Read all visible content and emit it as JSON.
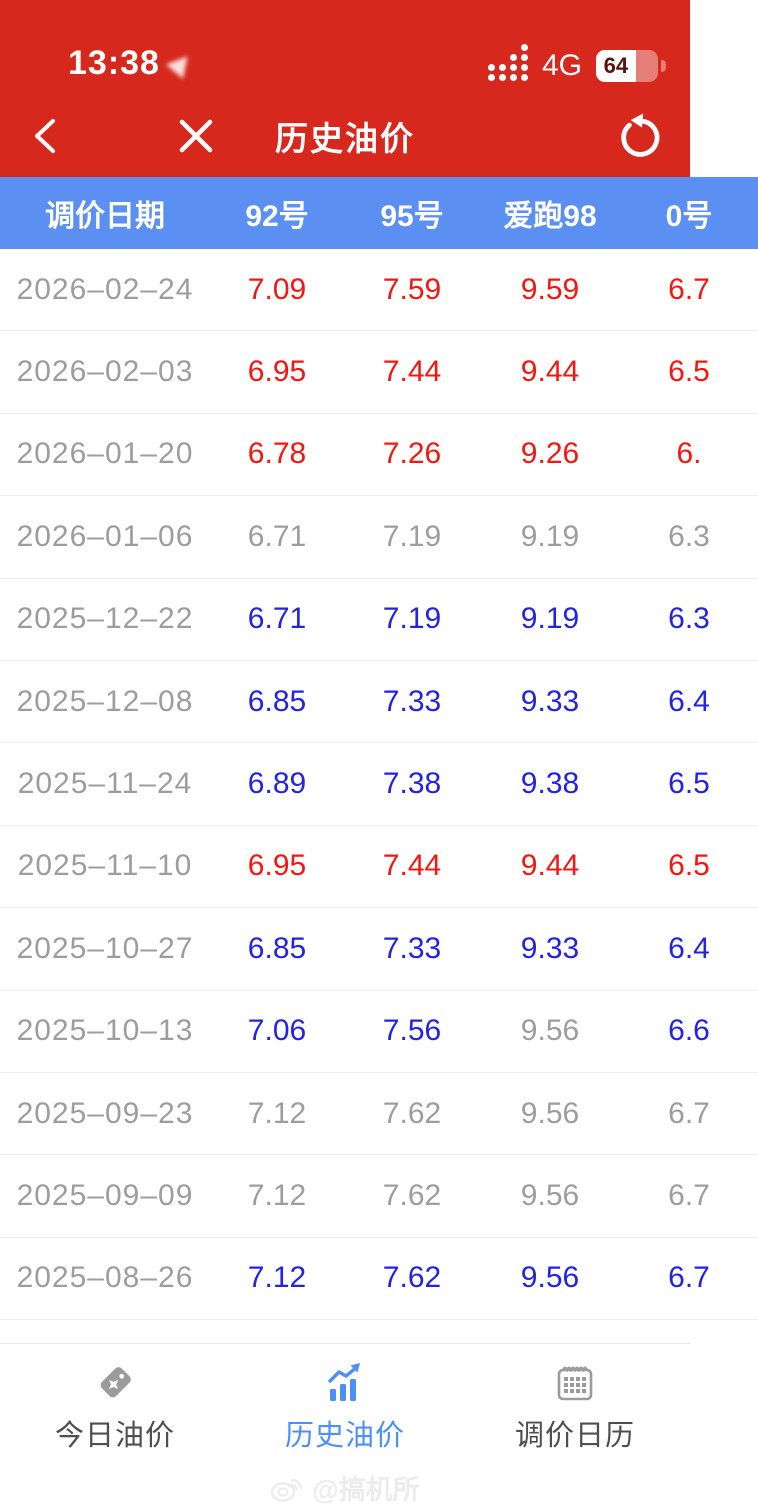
{
  "theme": {
    "red_bg": "#d7281e",
    "header_blue": "#5b8ff2",
    "price_up": "#f7150f",
    "price_down": "#2222e8",
    "price_flat": "#9d9d9d",
    "date_gray": "#9d9d9d",
    "tab_active": "#4d90f5",
    "tab_inactive": "#4f4f4f",
    "icon_gray": "#9b9b9b",
    "divider": "#ededed",
    "watermark": "#ececec"
  },
  "status_bar": {
    "time": "13:38",
    "network": "4G",
    "battery_percent": "64"
  },
  "nav_bar": {
    "title": "历史油价"
  },
  "table": {
    "columns": [
      {
        "label": "调价日期"
      },
      {
        "label": "92号"
      },
      {
        "label": "95号"
      },
      {
        "label": "爱跑98"
      },
      {
        "label": "0号"
      }
    ],
    "rows": [
      {
        "date": "2026–02–24",
        "values": [
          "7.09",
          "7.59",
          "9.59",
          "6.7"
        ],
        "colors": [
          "up",
          "up",
          "up",
          "up"
        ]
      },
      {
        "date": "2026–02–03",
        "values": [
          "6.95",
          "7.44",
          "9.44",
          "6.5"
        ],
        "colors": [
          "up",
          "up",
          "up",
          "up"
        ]
      },
      {
        "date": "2026–01–20",
        "values": [
          "6.78",
          "7.26",
          "9.26",
          "6."
        ],
        "colors": [
          "up",
          "up",
          "up",
          "up"
        ]
      },
      {
        "date": "2026–01–06",
        "values": [
          "6.71",
          "7.19",
          "9.19",
          "6.3"
        ],
        "colors": [
          "flat",
          "flat",
          "flat",
          "flat"
        ]
      },
      {
        "date": "2025–12–22",
        "values": [
          "6.71",
          "7.19",
          "9.19",
          "6.3"
        ],
        "colors": [
          "down",
          "down",
          "down",
          "down"
        ]
      },
      {
        "date": "2025–12–08",
        "values": [
          "6.85",
          "7.33",
          "9.33",
          "6.4"
        ],
        "colors": [
          "down",
          "down",
          "down",
          "down"
        ]
      },
      {
        "date": "2025–11–24",
        "values": [
          "6.89",
          "7.38",
          "9.38",
          "6.5"
        ],
        "colors": [
          "down",
          "down",
          "down",
          "down"
        ]
      },
      {
        "date": "2025–11–10",
        "values": [
          "6.95",
          "7.44",
          "9.44",
          "6.5"
        ],
        "colors": [
          "up",
          "up",
          "up",
          "up"
        ]
      },
      {
        "date": "2025–10–27",
        "values": [
          "6.85",
          "7.33",
          "9.33",
          "6.4"
        ],
        "colors": [
          "down",
          "down",
          "down",
          "down"
        ]
      },
      {
        "date": "2025–10–13",
        "values": [
          "7.06",
          "7.56",
          "9.56",
          "6.6"
        ],
        "colors": [
          "down",
          "down",
          "flat",
          "down"
        ]
      },
      {
        "date": "2025–09–23",
        "values": [
          "7.12",
          "7.62",
          "9.56",
          "6.7"
        ],
        "colors": [
          "flat",
          "flat",
          "flat",
          "flat"
        ]
      },
      {
        "date": "2025–09–09",
        "values": [
          "7.12",
          "7.62",
          "9.56",
          "6.7"
        ],
        "colors": [
          "flat",
          "flat",
          "flat",
          "flat"
        ]
      },
      {
        "date": "2025–08–26",
        "values": [
          "7.12",
          "7.62",
          "9.56",
          "6.7"
        ],
        "colors": [
          "down",
          "down",
          "down",
          "down"
        ]
      }
    ]
  },
  "tab_bar": {
    "tabs": [
      {
        "label": "今日油价"
      },
      {
        "label": "历史油价"
      },
      {
        "label": "调价日历"
      }
    ]
  },
  "watermark": {
    "text": "@搞机所"
  }
}
